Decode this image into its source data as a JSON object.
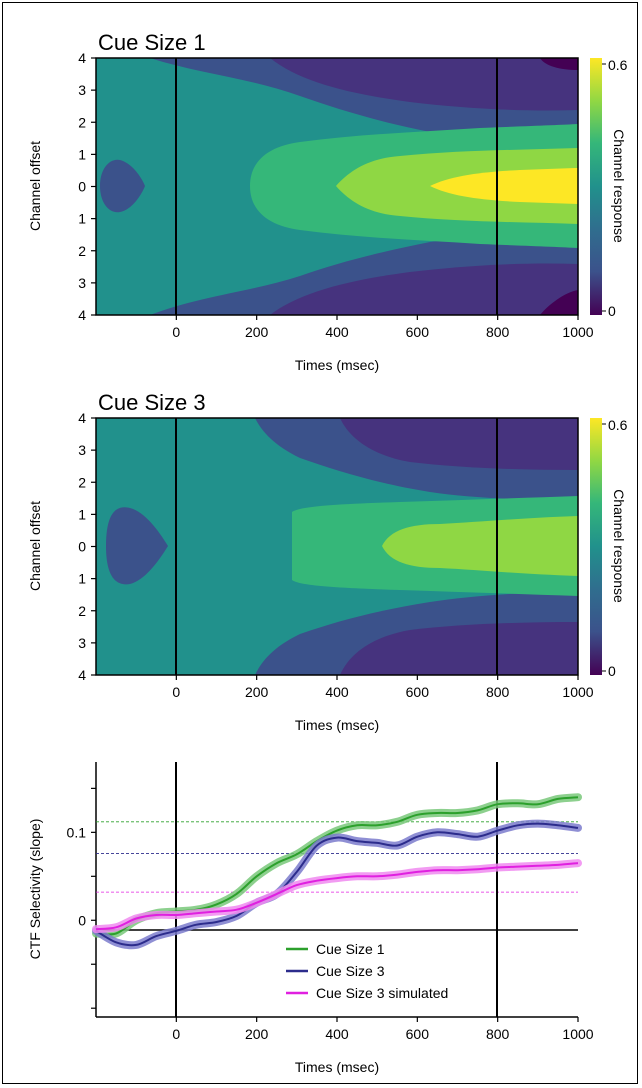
{
  "chart_data": [
    {
      "type": "heatmap",
      "title": "Cue Size 1",
      "xlabel": "Times (msec)",
      "ylabel": "Channel offset",
      "xlim": [
        -200,
        1000
      ],
      "x_ticks": [
        "0",
        "200",
        "400",
        "600",
        "800",
        "1000"
      ],
      "y_ticks": [
        "4",
        "3",
        "2",
        "1",
        "0",
        "1",
        "2",
        "3",
        "4"
      ],
      "vlines_at": [
        0,
        800
      ],
      "colorbar": {
        "label": "Channel response",
        "min_label": "0",
        "max_label": "0.6",
        "range": [
          0,
          0.6
        ]
      },
      "colors": [
        "#440154",
        "#3b528b",
        "#306d8e",
        "#21918c",
        "#35b779",
        "#8fd744",
        "#fde725"
      ]
    },
    {
      "type": "heatmap",
      "title": "Cue Size 3",
      "xlabel": "Times (msec)",
      "ylabel": "Channel offset",
      "xlim": [
        -200,
        1000
      ],
      "x_ticks": [
        "0",
        "200",
        "400",
        "600",
        "800",
        "1000"
      ],
      "y_ticks": [
        "4",
        "3",
        "2",
        "1",
        "0",
        "1",
        "2",
        "3",
        "4"
      ],
      "vlines_at": [
        0,
        800
      ],
      "colorbar": {
        "label": "Channel response",
        "min_label": "0",
        "max_label": "0.6",
        "range": [
          0,
          0.6
        ]
      }
    },
    {
      "type": "line",
      "xlabel": "Times (msec)",
      "ylabel": "CTF Selectivity (slope)",
      "xlim": [
        -200,
        1000
      ],
      "ylim": [
        -0.11,
        0.18
      ],
      "x_ticks": [
        "0",
        "200",
        "400",
        "600",
        "800",
        "1000"
      ],
      "y_ticks": [
        "0",
        "0.1"
      ],
      "vlines_at": [
        0,
        800
      ],
      "hline_at": 0,
      "legend_position": "lower-center",
      "x": [
        -200,
        -150,
        -100,
        -50,
        0,
        50,
        100,
        150,
        200,
        250,
        300,
        350,
        400,
        450,
        500,
        550,
        600,
        650,
        700,
        750,
        800,
        850,
        900,
        950,
        1000
      ],
      "series": [
        {
          "name": "Cue Size 1",
          "color": "#2ca02c",
          "band_color": "#79c87a",
          "ref_line": 0.112,
          "values": [
            -0.015,
            -0.015,
            0.0,
            0.008,
            0.01,
            0.012,
            0.018,
            0.03,
            0.05,
            0.065,
            0.075,
            0.09,
            0.102,
            0.108,
            0.108,
            0.112,
            0.12,
            0.122,
            0.122,
            0.125,
            0.132,
            0.133,
            0.132,
            0.138,
            0.14
          ]
        },
        {
          "name": "Cue Size 3",
          "color": "#2c2c8c",
          "band_color": "#7b7bcc",
          "ref_line": 0.076,
          "values": [
            -0.012,
            -0.025,
            -0.028,
            -0.018,
            -0.012,
            -0.005,
            -0.002,
            0.005,
            0.02,
            0.03,
            0.055,
            0.085,
            0.094,
            0.09,
            0.088,
            0.085,
            0.095,
            0.1,
            0.098,
            0.095,
            0.102,
            0.108,
            0.11,
            0.108,
            0.105
          ]
        },
        {
          "name": "Cue Size 3 simulated",
          "color": "#e020e0",
          "band_color": "#f08af0",
          "ref_line": 0.032,
          "values": [
            -0.01,
            -0.008,
            0.002,
            0.006,
            0.006,
            0.008,
            0.01,
            0.012,
            0.02,
            0.03,
            0.04,
            0.045,
            0.048,
            0.05,
            0.05,
            0.052,
            0.055,
            0.057,
            0.057,
            0.058,
            0.06,
            0.061,
            0.062,
            0.063,
            0.065
          ]
        }
      ]
    }
  ]
}
